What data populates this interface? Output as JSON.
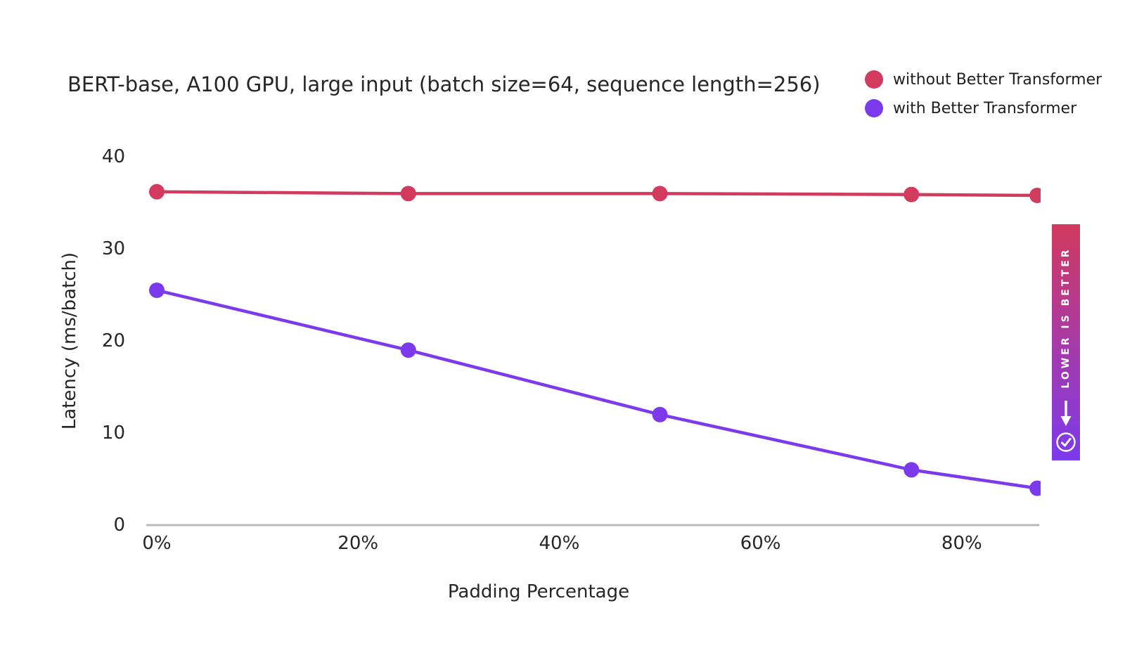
{
  "badge": {
    "label": "LOWER IS BETTER",
    "gradient_top": "#d23a5e",
    "gradient_bottom": "#7c3aed"
  },
  "legend": {
    "items": [
      {
        "label": "without Better Transformer",
        "color": "#d23a5e"
      },
      {
        "label": "with Better Transformer",
        "color": "#7c3aed"
      }
    ]
  },
  "chart_data": {
    "type": "line",
    "title": "BERT-base, A100 GPU, large input (batch size=64, sequence length=256)",
    "xlabel": "Padding Percentage",
    "ylabel": "Latency (ms/batch)",
    "x": [
      0,
      25,
      50,
      75,
      87.5
    ],
    "x_unit": "percent",
    "series": [
      {
        "name": "without Better Transformer",
        "color": "#d23a5e",
        "values": [
          36.2,
          36.0,
          36.0,
          35.9,
          35.8
        ]
      },
      {
        "name": "with Better Transformer",
        "color": "#7c3aed",
        "values": [
          25.5,
          19.0,
          12.0,
          6.0,
          4.0
        ]
      }
    ],
    "ylim": [
      0,
      40
    ],
    "yticks": [
      0,
      10,
      20,
      30,
      40
    ],
    "xticks": [
      0,
      20,
      40,
      60,
      80
    ],
    "xtick_labels": [
      "0%",
      "20%",
      "40%",
      "60%",
      "80%"
    ],
    "grid": false,
    "legend_position": "top-right",
    "axis_color": "#b8b8b8",
    "text_color": "#262626"
  }
}
